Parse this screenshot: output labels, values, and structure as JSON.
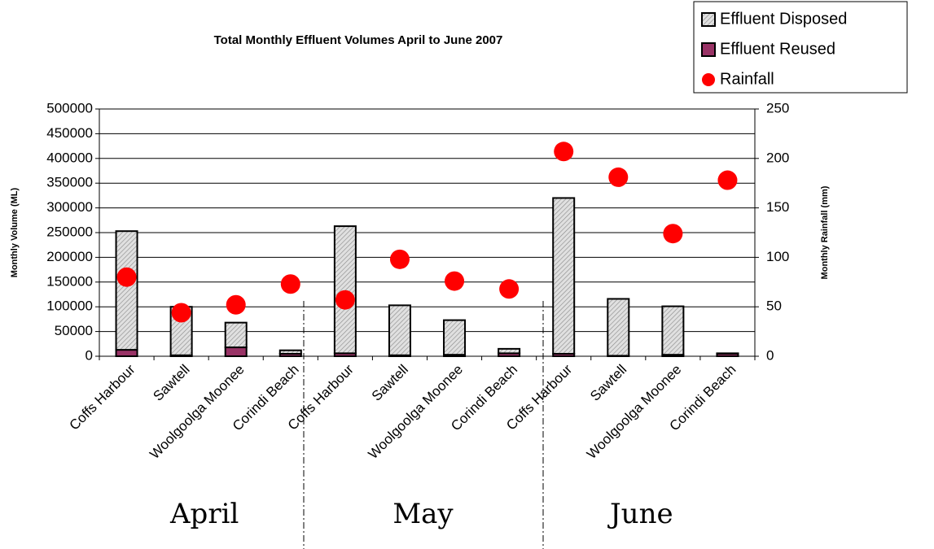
{
  "chart_data": {
    "type": "bar",
    "title": "Total Monthly Effluent Volumes April to June 2007",
    "y_label": "Monthly Volume (ML)",
    "y2_label": "Monthly Rainfall (mm)",
    "categories": [
      "Coffs Harbour",
      "Sawtell",
      "Woolgoolga Moonee",
      "Corindi Beach",
      "Coffs Harbour",
      "Sawtell",
      "Woolgoolga Moonee",
      "Corindi Beach",
      "Coffs Harbour",
      "Sawtell",
      "Woolgoolga Moonee",
      "Corindi Beach"
    ],
    "groups": [
      "April",
      "May",
      "June"
    ],
    "series": [
      {
        "name": "Effluent Disposed",
        "color": "#c0c0c0",
        "stack": "bottom2",
        "values": [
          240000,
          98000,
          50000,
          7000,
          257000,
          101000,
          70000,
          9000,
          315000,
          115000,
          98000,
          1000
        ]
      },
      {
        "name": "Effluent Reused",
        "color": "#993366",
        "stack": "bottom1",
        "values": [
          13000,
          2000,
          18000,
          5000,
          6000,
          2000,
          3000,
          6000,
          5000,
          1000,
          3000,
          5000
        ]
      },
      {
        "name": "Rainfall",
        "color": "#ff0000",
        "axis": "y2",
        "marker": "circle",
        "values": [
          80,
          44,
          52,
          73,
          57,
          98,
          76,
          68,
          207,
          181,
          124,
          178
        ]
      }
    ],
    "ylim": [
      0,
      500000
    ],
    "yticks": [
      0,
      50000,
      100000,
      150000,
      200000,
      250000,
      300000,
      350000,
      400000,
      450000,
      500000
    ],
    "y2lim": [
      0,
      250
    ],
    "y2ticks": [
      0,
      50,
      100,
      150,
      200,
      250
    ],
    "grid": true,
    "legend": "top-right"
  }
}
